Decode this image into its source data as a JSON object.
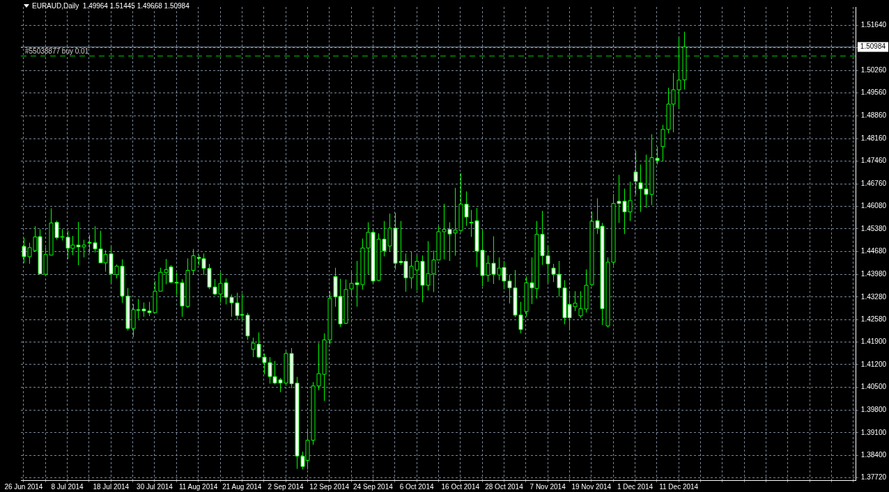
{
  "chart_data": {
    "type": "candlestick",
    "title": "EURAUD,Daily  1.49964 1.51445 1.49668 1.50984",
    "color": "#00ff00",
    "categories": [
      "26 Jun 2014",
      null,
      null,
      null,
      null,
      null,
      null,
      null,
      "8 Jul 2014",
      null,
      null,
      null,
      null,
      null,
      null,
      null,
      "18 Jul 2014",
      null,
      null,
      null,
      null,
      null,
      null,
      null,
      "30 Jul 2014",
      null,
      null,
      null,
      null,
      null,
      null,
      null,
      "11 Aug 2014",
      null,
      null,
      null,
      null,
      null,
      null,
      null,
      "21 Aug 2014",
      null,
      null,
      null,
      null,
      null,
      null,
      null,
      "2 Sep 2014",
      null,
      null,
      null,
      null,
      null,
      null,
      null,
      "12 Sep 2014",
      null,
      null,
      null,
      null,
      null,
      null,
      null,
      "24 Sep 2014",
      null,
      null,
      null,
      null,
      null,
      null,
      null,
      "6 Oct 2014",
      null,
      null,
      null,
      null,
      null,
      null,
      null,
      "16 Oct 2014",
      null,
      null,
      null,
      null,
      null,
      null,
      null,
      "28 Oct 2014",
      null,
      null,
      null,
      null,
      null,
      null,
      null,
      "7 Nov 2014",
      null,
      null,
      null,
      null,
      null,
      null,
      null,
      "19 Nov 2014",
      null,
      null,
      null,
      null,
      null,
      null,
      null,
      "1 Dec 2014",
      null,
      null,
      null,
      null,
      null,
      null,
      null,
      "11 Dec 2014",
      null,
      null,
      null,
      null,
      null,
      null,
      null,
      null,
      null,
      null,
      null,
      null,
      null,
      null,
      null,
      null,
      null,
      null,
      null,
      null,
      null,
      null,
      null,
      null,
      null,
      null,
      null,
      null,
      null,
      null,
      null,
      null
    ],
    "ohlc": [
      [
        1.4484,
        1.451,
        1.4433,
        1.4452
      ],
      [
        1.4452,
        1.4495,
        1.443,
        1.448
      ],
      [
        1.4471,
        1.4546,
        1.4468,
        1.4513
      ],
      [
        1.4514,
        1.4537,
        1.4398,
        1.4399
      ],
      [
        1.4398,
        1.4481,
        1.4396,
        1.4459
      ],
      [
        1.4457,
        1.4601,
        1.4456,
        1.4556
      ],
      [
        1.4558,
        1.4563,
        1.4505,
        1.4511
      ],
      [
        1.4513,
        1.4537,
        1.4502,
        1.4514
      ],
      [
        1.4512,
        1.4532,
        1.4445,
        1.4478
      ],
      [
        1.4478,
        1.4516,
        1.4457,
        1.4488
      ],
      [
        1.4488,
        1.4559,
        1.4426,
        1.4482
      ],
      [
        1.4482,
        1.4504,
        1.445,
        1.4488
      ],
      [
        1.4496,
        1.4519,
        1.4462,
        1.4495
      ],
      [
        1.4495,
        1.4546,
        1.4465,
        1.4476
      ],
      [
        1.4476,
        1.4532,
        1.4432,
        1.4433
      ],
      [
        1.4433,
        1.4472,
        1.4406,
        1.4459
      ],
      [
        1.4461,
        1.4483,
        1.4371,
        1.4399
      ],
      [
        1.4397,
        1.4428,
        1.4385,
        1.4423
      ],
      [
        1.4423,
        1.4444,
        1.431,
        1.4331
      ],
      [
        1.4331,
        1.4356,
        1.4225,
        1.4231
      ],
      [
        1.4231,
        1.4306,
        1.4205,
        1.4289
      ],
      [
        1.4289,
        1.4322,
        1.4261,
        1.4288
      ],
      [
        1.4291,
        1.4311,
        1.4267,
        1.4285
      ],
      [
        1.4285,
        1.4313,
        1.4269,
        1.428
      ],
      [
        1.428,
        1.4377,
        1.4278,
        1.4346
      ],
      [
        1.4346,
        1.4418,
        1.4345,
        1.4404
      ],
      [
        1.4403,
        1.4445,
        1.4367,
        1.4412
      ],
      [
        1.4421,
        1.4426,
        1.4371,
        1.4373
      ],
      [
        1.4373,
        1.4403,
        1.4335,
        1.4372
      ],
      [
        1.4372,
        1.4383,
        1.4267,
        1.43
      ],
      [
        1.4299,
        1.4447,
        1.4295,
        1.441
      ],
      [
        1.441,
        1.4476,
        1.4397,
        1.4455
      ],
      [
        1.445,
        1.4458,
        1.4426,
        1.4447
      ],
      [
        1.4446,
        1.4462,
        1.4396,
        1.4416
      ],
      [
        1.4416,
        1.443,
        1.4352,
        1.4358
      ],
      [
        1.4359,
        1.4383,
        1.4334,
        1.4337
      ],
      [
        1.4337,
        1.4404,
        1.4311,
        1.437
      ],
      [
        1.4372,
        1.4385,
        1.4305,
        1.4327
      ],
      [
        1.4327,
        1.4336,
        1.4267,
        1.431
      ],
      [
        1.431,
        1.4341,
        1.4257,
        1.4271
      ],
      [
        1.4274,
        1.4339,
        1.4256,
        1.4273
      ],
      [
        1.4272,
        1.4279,
        1.4196,
        1.4208
      ],
      [
        1.4167,
        1.4203,
        1.4143,
        1.4186
      ],
      [
        1.4183,
        1.4219,
        1.4139,
        1.4143
      ],
      [
        1.4143,
        1.4154,
        1.409,
        1.4126
      ],
      [
        1.4126,
        1.4143,
        1.4061,
        1.4083
      ],
      [
        1.4083,
        1.4131,
        1.4059,
        1.4063
      ],
      [
        1.4073,
        1.4079,
        1.4035,
        1.4063
      ],
      [
        1.4063,
        1.4161,
        1.4055,
        1.4154
      ],
      [
        1.4154,
        1.4171,
        1.4047,
        1.4061
      ],
      [
        1.4063,
        1.4082,
        1.3799,
        1.3838
      ],
      [
        1.3838,
        1.3852,
        1.3797,
        1.3806
      ],
      [
        1.3825,
        1.3923,
        1.3797,
        1.3887
      ],
      [
        1.3887,
        1.4066,
        1.3873,
        1.4054
      ],
      [
        1.4054,
        1.4186,
        1.4041,
        1.4092
      ],
      [
        1.409,
        1.4216,
        1.4008,
        1.4196
      ],
      [
        1.4196,
        1.4346,
        1.4182,
        1.4324
      ],
      [
        1.4391,
        1.4418,
        1.4298,
        1.4328
      ],
      [
        1.433,
        1.4384,
        1.4236,
        1.4245
      ],
      [
        1.4247,
        1.4382,
        1.4245,
        1.4351
      ],
      [
        1.4353,
        1.4406,
        1.4331,
        1.437
      ],
      [
        1.4372,
        1.4439,
        1.4298,
        1.4366
      ],
      [
        1.4366,
        1.4508,
        1.4351,
        1.4479
      ],
      [
        1.4479,
        1.4558,
        1.4398,
        1.4527
      ],
      [
        1.4527,
        1.4534,
        1.437,
        1.4377
      ],
      [
        1.4379,
        1.4524,
        1.4377,
        1.4506
      ],
      [
        1.4506,
        1.4562,
        1.4453,
        1.447
      ],
      [
        1.4485,
        1.4585,
        1.4469,
        1.454
      ],
      [
        1.454,
        1.4587,
        1.4412,
        1.4432
      ],
      [
        1.4438,
        1.4562,
        1.4427,
        1.4434
      ],
      [
        1.4438,
        1.4462,
        1.4344,
        1.4387
      ],
      [
        1.4387,
        1.4467,
        1.4354,
        1.4423
      ],
      [
        1.4411,
        1.4456,
        1.4348,
        1.4438
      ],
      [
        1.4438,
        1.4456,
        1.4312,
        1.4364
      ],
      [
        1.4364,
        1.45,
        1.4348,
        1.44
      ],
      [
        1.44,
        1.4471,
        1.4343,
        1.4442
      ],
      [
        1.4442,
        1.4546,
        1.4441,
        1.4529
      ],
      [
        1.4529,
        1.4615,
        1.4444,
        1.4536
      ],
      [
        1.4536,
        1.4558,
        1.4439,
        1.4522
      ],
      [
        1.4525,
        1.4664,
        1.4455,
        1.4534
      ],
      [
        1.4533,
        1.4709,
        1.4527,
        1.4614
      ],
      [
        1.4614,
        1.4653,
        1.4547,
        1.4574
      ],
      [
        1.4558,
        1.4596,
        1.4513,
        1.4557
      ],
      [
        1.4563,
        1.4602,
        1.442,
        1.4469
      ],
      [
        1.4472,
        1.4534,
        1.4361,
        1.4394
      ],
      [
        1.4395,
        1.4456,
        1.4375,
        1.4432
      ],
      [
        1.4432,
        1.4515,
        1.4368,
        1.4398
      ],
      [
        1.4396,
        1.445,
        1.438,
        1.4417
      ],
      [
        1.4419,
        1.4439,
        1.4351,
        1.4377
      ],
      [
        1.4377,
        1.4397,
        1.4308,
        1.4356
      ],
      [
        1.4356,
        1.4411,
        1.4266,
        1.4272
      ],
      [
        1.4273,
        1.4313,
        1.4216,
        1.4228
      ],
      [
        1.4283,
        1.4391,
        1.4268,
        1.4372
      ],
      [
        1.4372,
        1.445,
        1.4306,
        1.4356
      ],
      [
        1.4354,
        1.4562,
        1.4323,
        1.4521
      ],
      [
        1.4521,
        1.4593,
        1.4427,
        1.4455
      ],
      [
        1.4455,
        1.4485,
        1.4372,
        1.443
      ],
      [
        1.4417,
        1.443,
        1.4374,
        1.4398
      ],
      [
        1.4398,
        1.4439,
        1.4329,
        1.4356
      ],
      [
        1.4356,
        1.438,
        1.4244,
        1.4264
      ],
      [
        1.4305,
        1.434,
        1.4228,
        1.4264
      ],
      [
        1.4298,
        1.4346,
        1.4285,
        1.4309
      ],
      [
        1.427,
        1.4346,
        1.4264,
        1.4292
      ],
      [
        1.4291,
        1.4413,
        1.428,
        1.4364
      ],
      [
        1.4366,
        1.4591,
        1.4361,
        1.4561
      ],
      [
        1.4563,
        1.4632,
        1.4522,
        1.454
      ],
      [
        1.4546,
        1.4556,
        1.4242,
        1.4292
      ],
      [
        1.4239,
        1.445,
        1.4234,
        1.4435
      ],
      [
        1.4435,
        1.4645,
        1.4425,
        1.4616
      ],
      [
        1.4623,
        1.4704,
        1.4556,
        1.4616
      ],
      [
        1.4623,
        1.4662,
        1.4522,
        1.459
      ],
      [
        1.459,
        1.4683,
        1.4562,
        1.4625
      ],
      [
        1.4713,
        1.4778,
        1.4642,
        1.4684
      ],
      [
        1.468,
        1.4736,
        1.459,
        1.4661
      ],
      [
        1.4661,
        1.4766,
        1.4603,
        1.4644
      ],
      [
        1.4644,
        1.4829,
        1.4611,
        1.4757
      ],
      [
        1.4755,
        1.4791,
        1.4736,
        1.4748
      ],
      [
        1.4791,
        1.4858,
        1.4745,
        1.4844
      ],
      [
        1.4844,
        1.4972,
        1.4832,
        1.4922
      ],
      [
        1.4922,
        1.5018,
        1.4835,
        1.4966
      ],
      [
        1.4966,
        1.5127,
        1.4909,
        1.4996
      ],
      [
        1.49964,
        1.51445,
        1.49668,
        1.50984
      ],
      null,
      null,
      null,
      null,
      null,
      null,
      null,
      null,
      null,
      null,
      null,
      null,
      null,
      null,
      null,
      null,
      null,
      null,
      null,
      null,
      null,
      null,
      null,
      null,
      null,
      null,
      null,
      null,
      null,
      null,
      null
    ],
    "ylim": [
      1.3764,
      1.5221
    ],
    "yticks": [
      {
        "value": 1.5164,
        "label": "1.51640"
      },
      {
        "value": 1.5096,
        "label": null
      },
      {
        "value": 1.5026,
        "label": "1.50260"
      },
      {
        "value": 1.4956,
        "label": "1.49560"
      },
      {
        "value": 1.4886,
        "label": "1.48860"
      },
      {
        "value": 1.4816,
        "label": "1.48160"
      },
      {
        "value": 1.4746,
        "label": "1.47460"
      },
      {
        "value": 1.4676,
        "label": "1.46760"
      },
      {
        "value": 1.4608,
        "label": "1.46080"
      },
      {
        "value": 1.4538,
        "label": "1.45380"
      },
      {
        "value": 1.4468,
        "label": "1.44680"
      },
      {
        "value": 1.4398,
        "label": "1.43980"
      },
      {
        "value": 1.4328,
        "label": "1.43280"
      },
      {
        "value": 1.4258,
        "label": "1.42580"
      },
      {
        "value": 1.419,
        "label": "1.41900"
      },
      {
        "value": 1.412,
        "label": "1.41200"
      },
      {
        "value": 1.405,
        "label": "1.40500"
      },
      {
        "value": 1.398,
        "label": "1.39800"
      },
      {
        "value": 1.391,
        "label": "1.39100"
      },
      {
        "value": 1.384,
        "label": "1.38400"
      },
      {
        "value": 1.3772,
        "label": "1.37720"
      }
    ],
    "ref_lines": [
      {
        "axis": "y",
        "value": 1.50984,
        "label": "1.50984",
        "color": "#778899",
        "line_style": "solid"
      },
      {
        "axis": "y",
        "value": 1.507,
        "label": "#55038877 buy 0.01",
        "color": "#00c000",
        "line_style": "dashed"
      }
    ],
    "colors": [
      "#ffffff",
      "#000000",
      "#000000",
      "#ffffff",
      "#000000",
      "#000000",
      "#ffffff",
      "#000000",
      "#ffffff",
      "#000000",
      "#ffffff",
      "#000000",
      "#ffffff",
      "#ffffff",
      "#ffffff",
      "#000000",
      "#ffffff",
      "#000000",
      "#ffffff",
      "#ffffff",
      "#000000",
      "#ffffff",
      "#ffffff",
      "#ffffff",
      "#000000",
      "#000000",
      "#000000",
      "#ffffff",
      "#ffffff",
      "#ffffff",
      "#000000",
      "#000000",
      "#ffffff",
      "#ffffff",
      "#ffffff",
      "#ffffff",
      "#000000",
      "#ffffff",
      "#ffffff",
      "#ffffff",
      "#ffffff",
      "#ffffff",
      "#000000",
      "#ffffff",
      "#ffffff",
      "#ffffff",
      "#ffffff",
      "#ffffff",
      "#000000",
      "#ffffff",
      "#ffffff",
      "#ffffff",
      "#000000",
      "#000000",
      "#000000",
      "#000000",
      "#000000",
      "#ffffff",
      "#ffffff",
      "#000000",
      "#000000",
      "#ffffff",
      "#000000",
      "#000000",
      "#ffffff",
      "#000000",
      "#ffffff",
      "#000000",
      "#ffffff",
      "#ffffff",
      "#ffffff",
      "#000000",
      "#000000",
      "#ffffff",
      "#000000",
      "#000000",
      "#000000",
      "#000000",
      "#ffffff",
      "#000000",
      "#000000",
      "#ffffff",
      "#ffffff",
      "#ffffff",
      "#ffffff",
      "#000000",
      "#ffffff",
      "#000000",
      "#ffffff",
      "#ffffff",
      "#ffffff",
      "#ffffff",
      "#000000",
      "#ffffff",
      "#000000",
      "#ffffff",
      "#ffffff",
      "#ffffff",
      "#ffffff",
      "#ffffff",
      "#ffffff",
      "#000000",
      "#000000",
      "#000000",
      "#000000",
      "#ffffff",
      "#ffffff",
      "#000000",
      "#000000",
      "#ffffff",
      "#ffffff",
      "#000000",
      "#ffffff",
      "#ffffff",
      "#ffffff",
      "#000000",
      "#ffffff",
      "#000000",
      "#000000",
      "#000000",
      "#000000",
      "#000000",
      null,
      null,
      null,
      null,
      null,
      null,
      null,
      null,
      null,
      null,
      null,
      null,
      null,
      null,
      null,
      null,
      null,
      null,
      null,
      null,
      null,
      null,
      null,
      null,
      null,
      null,
      null,
      null,
      null,
      null,
      null
    ],
    "grid": true
  }
}
